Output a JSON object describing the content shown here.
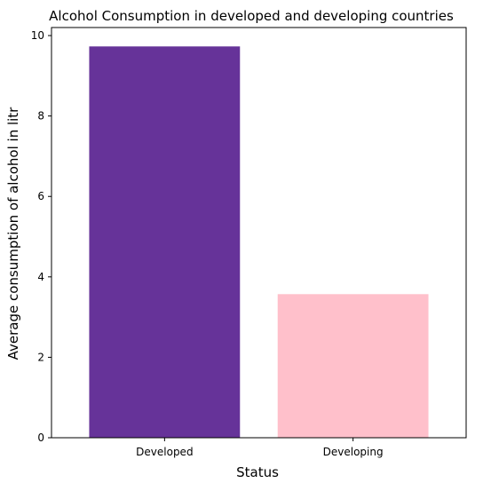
{
  "chart_data": {
    "type": "bar",
    "title": "Alcohol Consumption in developed and developing countries",
    "xlabel": "Status",
    "ylabel": "Average consumption of alcohol in litr",
    "categories": [
      "Developed",
      "Developing"
    ],
    "values": [
      9.73,
      3.57
    ],
    "bar_colors": [
      "#663399",
      "#ffc0cb"
    ],
    "ylim": [
      0,
      10.2
    ],
    "yticks": [
      0,
      2,
      4,
      6,
      8,
      10
    ],
    "grid": false,
    "legend": "none"
  }
}
